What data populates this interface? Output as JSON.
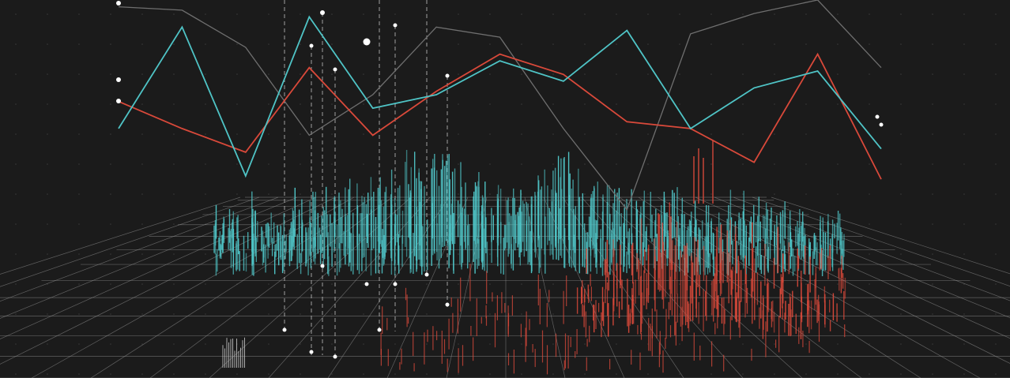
{
  "chart_data": [
    {
      "type": "line",
      "x": [
        0,
        1,
        2,
        3,
        4,
        5,
        6,
        7,
        8,
        9,
        10,
        11,
        12
      ],
      "series": [
        {
          "color": "#4fc4c6",
          "values": [
            62,
            92,
            48,
            95,
            68,
            72,
            82,
            76,
            91,
            62,
            74,
            79,
            56
          ]
        },
        {
          "color": "#d9493a",
          "values": [
            70,
            62,
            55,
            80,
            60,
            73,
            84,
            78,
            64,
            62,
            52,
            84,
            47
          ]
        },
        {
          "color": "#6f6f6f",
          "values": [
            98,
            97,
            86,
            60,
            72,
            92,
            89,
            62,
            38,
            90,
            96,
            100,
            80
          ]
        }
      ],
      "ylim": [
        30,
        100
      ],
      "grid": false
    },
    {
      "type": "bar",
      "style": "3d-perspective",
      "series": [
        {
          "color": "#4fc4c6",
          "values": [
            30,
            36,
            42,
            33,
            39,
            47,
            55,
            52,
            58,
            61,
            64,
            70,
            92,
            88,
            81,
            72,
            66,
            59,
            55,
            61,
            73,
            78,
            80,
            68,
            62,
            57,
            52,
            49,
            46,
            44,
            42,
            40,
            43,
            41,
            39,
            37,
            35,
            33,
            36,
            31
          ]
        },
        {
          "color": "#d9493a",
          "values": [
            0,
            0,
            0,
            0,
            0,
            0,
            0,
            0,
            0,
            0,
            0,
            0,
            0,
            0,
            0,
            0,
            0,
            0,
            0,
            0,
            0,
            0,
            0,
            22,
            28,
            34,
            44,
            52,
            68,
            61,
            48,
            39,
            45,
            50,
            41,
            37,
            33,
            29,
            26,
            22
          ]
        }
      ],
      "grid": true
    }
  ],
  "colors": {
    "background": "#1b1b1b",
    "grid": "#9a9a9a",
    "cyan": "#4fc4c6",
    "red": "#d9493a",
    "grey_line": "#6f6f6f",
    "markers": "#ffffff"
  }
}
